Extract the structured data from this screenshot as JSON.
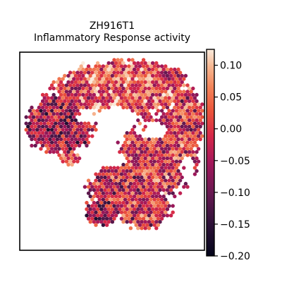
{
  "chart_data": {
    "type": "heatmap",
    "title_line1": "ZH916T1",
    "title_line2": "Inflammatory Response activity",
    "colorbar": {
      "min": -0.2,
      "max": 0.125,
      "ticks": [
        0.1,
        0.05,
        0.0,
        -0.05,
        -0.1,
        -0.15,
        -0.2
      ],
      "tick_labels": [
        "0.10",
        "0.05",
        "0.00",
        "−0.05",
        "−0.10",
        "−0.15",
        "−0.20"
      ],
      "colormap": "rocket"
    },
    "region_mean_values": {
      "upper_band": 0.03,
      "left_lobe": -0.05,
      "right_lobe": 0.0,
      "lower_tail": -0.02
    },
    "colors": {
      "low": "#03051a",
      "mid": "#cb1b4f",
      "high": "#faebdd",
      "frame": "#000000"
    }
  }
}
